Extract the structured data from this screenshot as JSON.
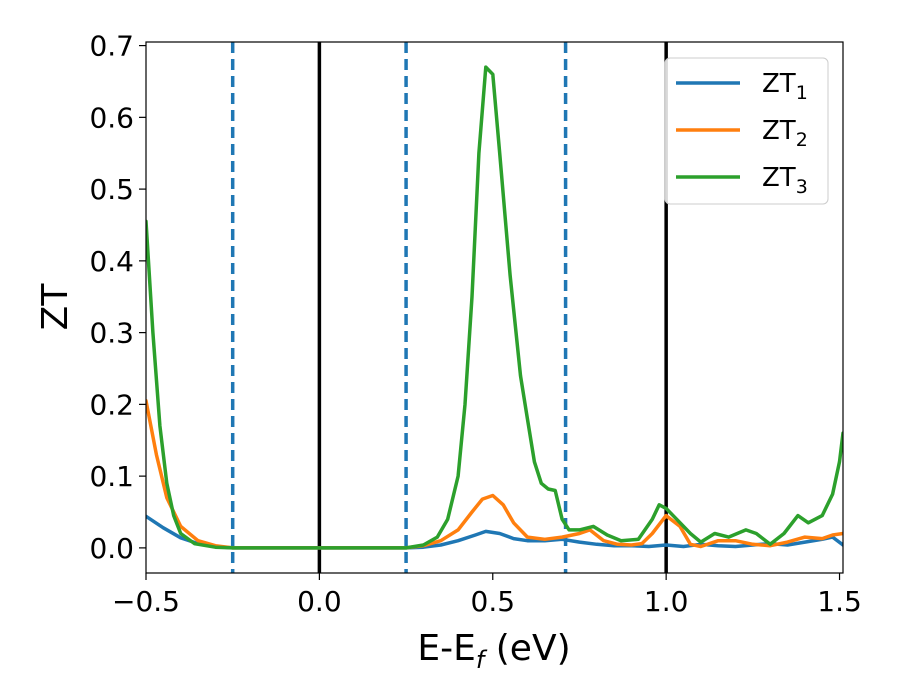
{
  "chart_data": {
    "type": "line",
    "xlabel": "E-E_f (eV)",
    "xlabel_parts": {
      "main": "E-E",
      "sub": "f",
      "unit": " (eV)"
    },
    "ylabel": "ZT",
    "xlim": [
      -0.5,
      1.51
    ],
    "ylim": [
      -0.035,
      0.705
    ],
    "x_ticks": [
      -0.5,
      0.0,
      0.5,
      1.0,
      1.5
    ],
    "x_tick_labels": [
      "−0.5",
      "0.0",
      "0.5",
      "1.0",
      "1.5"
    ],
    "y_ticks": [
      0.0,
      0.1,
      0.2,
      0.3,
      0.4,
      0.5,
      0.6,
      0.7
    ],
    "y_tick_labels": [
      "0.0",
      "0.1",
      "0.2",
      "0.3",
      "0.4",
      "0.5",
      "0.6",
      "0.7"
    ],
    "grid": false,
    "legend_position": "top-right",
    "vertical_lines": [
      {
        "x": -0.25,
        "style": "dashed",
        "color": "#1f77b4"
      },
      {
        "x": 0.0,
        "style": "solid",
        "color": "#000000"
      },
      {
        "x": 0.25,
        "style": "dashed",
        "color": "#1f77b4"
      },
      {
        "x": 0.71,
        "style": "dashed",
        "color": "#1f77b4"
      },
      {
        "x": 1.0,
        "style": "solid",
        "color": "#000000"
      }
    ],
    "series": [
      {
        "name": "ZT_1",
        "name_main": "ZT",
        "name_sub": "1",
        "color": "#1f77b4",
        "points": [
          [
            -0.5,
            0.044
          ],
          [
            -0.45,
            0.028
          ],
          [
            -0.4,
            0.014
          ],
          [
            -0.35,
            0.006
          ],
          [
            -0.3,
            0.002
          ],
          [
            -0.25,
            0.0
          ],
          [
            0.0,
            0.0
          ],
          [
            0.25,
            0.0
          ],
          [
            0.3,
            0.001
          ],
          [
            0.35,
            0.004
          ],
          [
            0.4,
            0.01
          ],
          [
            0.45,
            0.018
          ],
          [
            0.48,
            0.023
          ],
          [
            0.52,
            0.02
          ],
          [
            0.56,
            0.013
          ],
          [
            0.6,
            0.01
          ],
          [
            0.65,
            0.01
          ],
          [
            0.7,
            0.012
          ],
          [
            0.75,
            0.008
          ],
          [
            0.8,
            0.005
          ],
          [
            0.85,
            0.003
          ],
          [
            0.9,
            0.003
          ],
          [
            0.95,
            0.002
          ],
          [
            1.0,
            0.004
          ],
          [
            1.05,
            0.002
          ],
          [
            1.1,
            0.005
          ],
          [
            1.15,
            0.003
          ],
          [
            1.2,
            0.002
          ],
          [
            1.25,
            0.004
          ],
          [
            1.3,
            0.006
          ],
          [
            1.35,
            0.004
          ],
          [
            1.4,
            0.008
          ],
          [
            1.45,
            0.012
          ],
          [
            1.48,
            0.015
          ],
          [
            1.51,
            0.004
          ]
        ]
      },
      {
        "name": "ZT_2",
        "name_main": "ZT",
        "name_sub": "2",
        "color": "#ff7f0e",
        "points": [
          [
            -0.5,
            0.205
          ],
          [
            -0.47,
            0.13
          ],
          [
            -0.44,
            0.07
          ],
          [
            -0.4,
            0.03
          ],
          [
            -0.35,
            0.01
          ],
          [
            -0.3,
            0.003
          ],
          [
            -0.25,
            0.0
          ],
          [
            0.0,
            0.0
          ],
          [
            0.25,
            0.0
          ],
          [
            0.3,
            0.003
          ],
          [
            0.35,
            0.01
          ],
          [
            0.4,
            0.025
          ],
          [
            0.44,
            0.05
          ],
          [
            0.47,
            0.068
          ],
          [
            0.5,
            0.073
          ],
          [
            0.53,
            0.06
          ],
          [
            0.56,
            0.035
          ],
          [
            0.6,
            0.015
          ],
          [
            0.65,
            0.012
          ],
          [
            0.7,
            0.015
          ],
          [
            0.75,
            0.02
          ],
          [
            0.78,
            0.025
          ],
          [
            0.82,
            0.01
          ],
          [
            0.86,
            0.005
          ],
          [
            0.9,
            0.004
          ],
          [
            0.93,
            0.006
          ],
          [
            0.96,
            0.02
          ],
          [
            1.0,
            0.045
          ],
          [
            1.04,
            0.03
          ],
          [
            1.07,
            0.005
          ],
          [
            1.1,
            0.002
          ],
          [
            1.15,
            0.01
          ],
          [
            1.2,
            0.01
          ],
          [
            1.25,
            0.005
          ],
          [
            1.3,
            0.003
          ],
          [
            1.35,
            0.008
          ],
          [
            1.4,
            0.015
          ],
          [
            1.45,
            0.013
          ],
          [
            1.48,
            0.018
          ],
          [
            1.51,
            0.02
          ]
        ]
      },
      {
        "name": "ZT_3",
        "name_main": "ZT",
        "name_sub": "3",
        "color": "#2ca02c",
        "points": [
          [
            -0.5,
            0.455
          ],
          [
            -0.48,
            0.3
          ],
          [
            -0.46,
            0.17
          ],
          [
            -0.44,
            0.09
          ],
          [
            -0.42,
            0.045
          ],
          [
            -0.4,
            0.02
          ],
          [
            -0.36,
            0.006
          ],
          [
            -0.3,
            0.001
          ],
          [
            -0.25,
            0.0
          ],
          [
            0.0,
            0.0
          ],
          [
            0.25,
            0.0
          ],
          [
            0.3,
            0.004
          ],
          [
            0.34,
            0.015
          ],
          [
            0.37,
            0.04
          ],
          [
            0.4,
            0.1
          ],
          [
            0.42,
            0.2
          ],
          [
            0.44,
            0.35
          ],
          [
            0.46,
            0.55
          ],
          [
            0.48,
            0.67
          ],
          [
            0.5,
            0.66
          ],
          [
            0.52,
            0.55
          ],
          [
            0.55,
            0.38
          ],
          [
            0.58,
            0.24
          ],
          [
            0.6,
            0.18
          ],
          [
            0.62,
            0.12
          ],
          [
            0.64,
            0.09
          ],
          [
            0.66,
            0.082
          ],
          [
            0.68,
            0.08
          ],
          [
            0.7,
            0.04
          ],
          [
            0.72,
            0.025
          ],
          [
            0.75,
            0.025
          ],
          [
            0.79,
            0.03
          ],
          [
            0.83,
            0.018
          ],
          [
            0.87,
            0.01
          ],
          [
            0.92,
            0.012
          ],
          [
            0.96,
            0.04
          ],
          [
            0.98,
            0.06
          ],
          [
            1.0,
            0.055
          ],
          [
            1.03,
            0.04
          ],
          [
            1.07,
            0.02
          ],
          [
            1.1,
            0.008
          ],
          [
            1.14,
            0.02
          ],
          [
            1.18,
            0.015
          ],
          [
            1.23,
            0.025
          ],
          [
            1.26,
            0.02
          ],
          [
            1.3,
            0.005
          ],
          [
            1.34,
            0.02
          ],
          [
            1.38,
            0.045
          ],
          [
            1.41,
            0.035
          ],
          [
            1.45,
            0.045
          ],
          [
            1.48,
            0.075
          ],
          [
            1.5,
            0.12
          ],
          [
            1.51,
            0.16
          ]
        ]
      }
    ]
  }
}
